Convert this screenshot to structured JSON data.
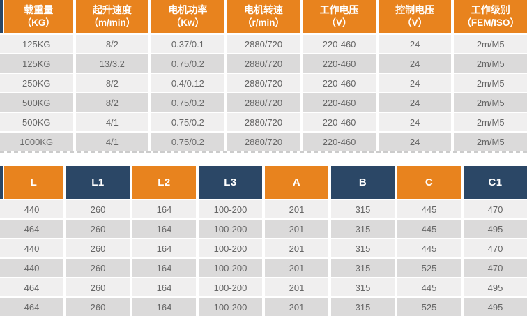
{
  "colors": {
    "orange": "#E8831E",
    "navy": "#2B4766",
    "row_light": "#F0EFEF",
    "row_dark": "#DBDADA",
    "cell_text": "#666666",
    "header_text": "#FFFFFF",
    "divider": "#CCCCCC"
  },
  "spec_table": {
    "columns": [
      {
        "title": "载重量",
        "unit": "（KG）"
      },
      {
        "title": "起升速度",
        "unit": "（m/min）"
      },
      {
        "title": "电机功率",
        "unit": "（Kw）"
      },
      {
        "title": "电机转速",
        "unit": "（r/min）"
      },
      {
        "title": "工作电压",
        "unit": "（V）"
      },
      {
        "title": "控制电压",
        "unit": "（V）"
      },
      {
        "title": "工作级别",
        "unit": "（FEM/ISO）"
      }
    ],
    "rows": [
      [
        "125KG",
        "8/2",
        "0.37/0.1",
        "2880/720",
        "220-460",
        "24",
        "2m/M5"
      ],
      [
        "125KG",
        "13/3.2",
        "0.75/0.2",
        "2880/720",
        "220-460",
        "24",
        "2m/M5"
      ],
      [
        "250KG",
        "8/2",
        "0.4/0.12",
        "2880/720",
        "220-460",
        "24",
        "2m/M5"
      ],
      [
        "500KG",
        "8/2",
        "0.75/0.2",
        "2880/720",
        "220-460",
        "24",
        "2m/M5"
      ],
      [
        "500KG",
        "4/1",
        "0.75/0.2",
        "2880/720",
        "220-460",
        "24",
        "2m/M5"
      ],
      [
        "1000KG",
        "4/1",
        "0.75/0.2",
        "2880/720",
        "220-460",
        "24",
        "2m/M5"
      ]
    ]
  },
  "dimension_table": {
    "columns": [
      {
        "label": "L",
        "color": "orange"
      },
      {
        "label": "L1",
        "color": "navy"
      },
      {
        "label": "L2",
        "color": "orange"
      },
      {
        "label": "L3",
        "color": "navy"
      },
      {
        "label": "A",
        "color": "orange"
      },
      {
        "label": "B",
        "color": "navy"
      },
      {
        "label": "C",
        "color": "orange"
      },
      {
        "label": "C1",
        "color": "navy"
      }
    ],
    "rows": [
      [
        "440",
        "260",
        "164",
        "100-200",
        "201",
        "315",
        "445",
        "470"
      ],
      [
        "464",
        "260",
        "164",
        "100-200",
        "201",
        "315",
        "445",
        "495"
      ],
      [
        "440",
        "260",
        "164",
        "100-200",
        "201",
        "315",
        "445",
        "470"
      ],
      [
        "440",
        "260",
        "164",
        "100-200",
        "201",
        "315",
        "525",
        "470"
      ],
      [
        "464",
        "260",
        "164",
        "100-200",
        "201",
        "315",
        "445",
        "495"
      ],
      [
        "464",
        "260",
        "164",
        "100-200",
        "201",
        "315",
        "525",
        "495"
      ]
    ]
  }
}
